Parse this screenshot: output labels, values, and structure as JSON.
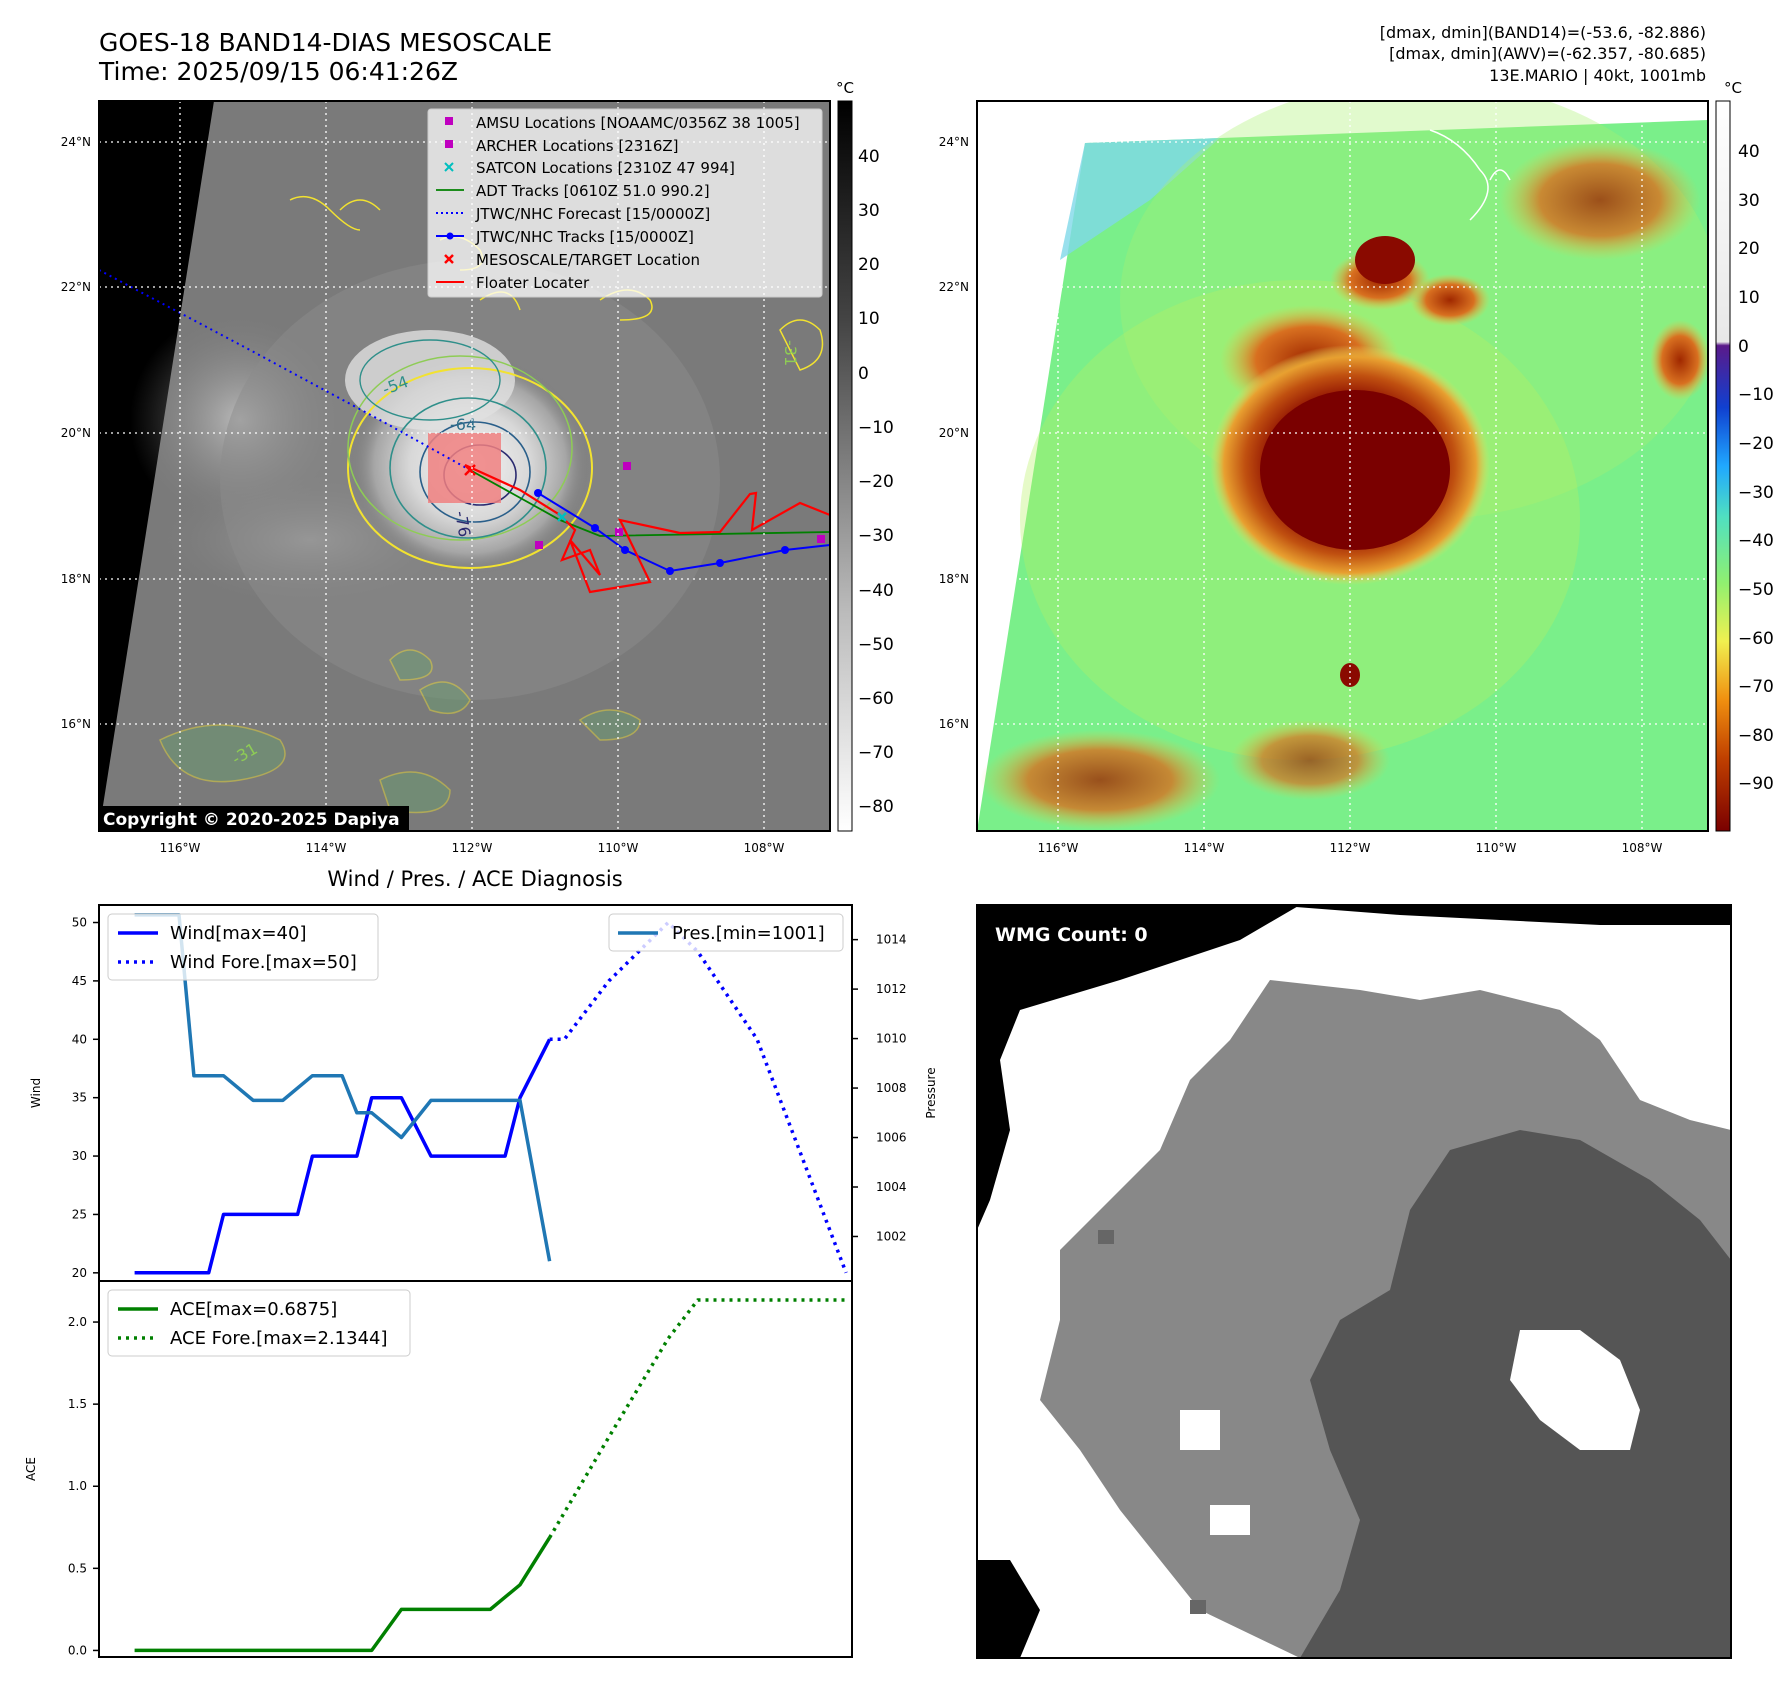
{
  "header": {
    "title": "GOES-18 BAND14-DIAS MESOSCALE",
    "time": "Time: 2025/09/15 06:41:26Z",
    "info_line1": "[dmax, dmin](BAND14)=(-53.6, -82.886)",
    "info_line2": "[dmax, dmin](AWV)=(-62.357, -80.685)",
    "info_line3": "13E.MARIO | 40kt, 1001mb"
  },
  "colors": {
    "wind": "#0000ff",
    "pressure": "#1f77b4",
    "ace": "#008000",
    "floater": "#ff0000",
    "jtwc": "#0000ff",
    "adt": "#008000",
    "amsu": "#bf00bf",
    "satcon": "#00bfbf",
    "target": "#ff0000"
  },
  "map_left": {
    "legend": [
      {
        "label": "AMSU Locations [NOAAMC/0356Z 38 1005]",
        "icon": "square-marker-icon",
        "color": "#bf00bf"
      },
      {
        "label": "ARCHER Locations [2316Z]",
        "icon": "square-marker-icon",
        "color": "#bf00bf"
      },
      {
        "label": "SATCON Locations [2310Z 47 994]",
        "icon": "x-marker-icon",
        "color": "#00bfbf"
      },
      {
        "label": "ADT Tracks [0610Z 51.0 990.2]",
        "icon": "solid-line-icon",
        "color": "#008000"
      },
      {
        "label": "JTWC/NHC Forecast [15/0000Z]",
        "icon": "dotted-line-icon",
        "color": "#0000ff"
      },
      {
        "label": "JTWC/NHC Tracks [15/0000Z]",
        "icon": "line-dot-icon",
        "color": "#0000ff"
      },
      {
        "label": "MESOSCALE/TARGET Location",
        "icon": "x-marker-icon",
        "color": "#ff0000"
      },
      {
        "label": "Floater Locater",
        "icon": "solid-line-icon",
        "color": "#ff0000"
      }
    ],
    "copyright": "Copyright © 2020-2025 Dapiya",
    "contour_labels": [
      "-54",
      "-64",
      "-76",
      "-31",
      "-31"
    ],
    "colorbar_unit": "°C",
    "colorbar_ticks": [
      "40",
      "30",
      "20",
      "10",
      "0",
      "−10",
      "−20",
      "−30",
      "−40",
      "−50",
      "−60",
      "−70",
      "−80"
    ]
  },
  "map_right": {
    "colorbar_unit": "°C",
    "colorbar_ticks": [
      "40",
      "30",
      "20",
      "10",
      "0",
      "−10",
      "−20",
      "−30",
      "−40",
      "−50",
      "−60",
      "−70",
      "−80",
      "−90"
    ]
  },
  "map_axes": {
    "lat_ticks": [
      "24°N",
      "22°N",
      "20°N",
      "18°N",
      "16°N"
    ],
    "lon_ticks": [
      "116°W",
      "114°W",
      "112°W",
      "110°W",
      "108°W"
    ]
  },
  "diag": {
    "title": "Wind / Pres. / ACE Diagnosis",
    "wind_ylabel": "Wind",
    "pres_ylabel": "Pressure",
    "ace_ylabel": "ACE",
    "legend_wind": "Wind[max=40]",
    "legend_wind_fore": "Wind Fore.[max=50]",
    "legend_pres": "Pres.[min=1001]",
    "legend_ace": "ACE[max=0.6875]",
    "legend_ace_fore": "ACE Fore.[max=2.1344]"
  },
  "wmg": {
    "label": "WMG Count: 0"
  },
  "chart_data": [
    {
      "type": "line",
      "title": "Wind / Pres. / ACE Diagnosis",
      "ylabel": "Wind",
      "ylabel2": "Pressure",
      "x": [
        0,
        1,
        2,
        3,
        4,
        5,
        6,
        7,
        8,
        9,
        10,
        11,
        12,
        13,
        14,
        15,
        16,
        17,
        18,
        19,
        20,
        21,
        22,
        23,
        24
      ],
      "ylim": [
        19.3,
        51.5
      ],
      "y2lim": [
        1000.2,
        1015.4
      ],
      "yticks": [
        20,
        25,
        30,
        35,
        40,
        45,
        50
      ],
      "y2ticks": [
        1002,
        1004,
        1006,
        1008,
        1010,
        1012,
        1014
      ],
      "series": [
        {
          "name": "Wind[max=40]",
          "axis": "left",
          "style": "solid",
          "x": [
            0,
            1,
            2,
            2.5,
            3,
            4,
            5,
            5.5,
            6,
            7,
            7.5,
            8,
            9,
            10,
            11,
            12,
            12.5,
            13,
            14
          ],
          "values": [
            20,
            20,
            20,
            20,
            25,
            25,
            25,
            25,
            30,
            30,
            30,
            35,
            35,
            30,
            30,
            30,
            30,
            35,
            40
          ]
        },
        {
          "name": "Wind Fore.[max=50]",
          "axis": "left",
          "style": "dotted",
          "x": [
            14,
            14.5,
            16,
            18,
            19,
            21,
            24
          ],
          "values": [
            40,
            40,
            45,
            50,
            47.5,
            40,
            20
          ]
        },
        {
          "name": "Pres.[min=1001]",
          "axis": "right",
          "style": "solid",
          "x": [
            0,
            1,
            1.5,
            2,
            3,
            4,
            5,
            6,
            7,
            7.5,
            8,
            9,
            10,
            11,
            12,
            13,
            14
          ],
          "values": [
            1015,
            1015,
            1015,
            1008.5,
            1008.5,
            1007.5,
            1007.5,
            1008.5,
            1008.5,
            1007,
            1007,
            1006,
            1007.5,
            1007.5,
            1007.5,
            1007.5,
            1001
          ]
        }
      ]
    },
    {
      "type": "line",
      "ylabel": "ACE",
      "x": [
        0,
        1,
        2,
        3,
        4,
        5,
        6,
        7,
        8,
        9,
        10,
        11,
        12,
        13,
        14,
        15,
        16,
        17,
        18,
        19,
        20,
        21,
        22,
        23,
        24
      ],
      "ylim": [
        -0.04,
        2.25
      ],
      "yticks": [
        0.0,
        0.5,
        1.0,
        1.5,
        2.0
      ],
      "series": [
        {
          "name": "ACE[max=0.6875]",
          "style": "solid",
          "x": [
            0,
            2,
            4,
            6,
            7,
            8,
            9,
            10,
            11,
            12,
            13,
            14
          ],
          "values": [
            0,
            0,
            0,
            0,
            0,
            0,
            0.25,
            0.25,
            0.25,
            0.25,
            0.4,
            0.6875
          ]
        },
        {
          "name": "ACE Fore.[max=2.1344]",
          "style": "dotted",
          "x": [
            14,
            16,
            18,
            19,
            20,
            24
          ],
          "values": [
            0.6875,
            1.3,
            1.9,
            2.1344,
            2.1344,
            2.1344
          ]
        }
      ]
    }
  ]
}
